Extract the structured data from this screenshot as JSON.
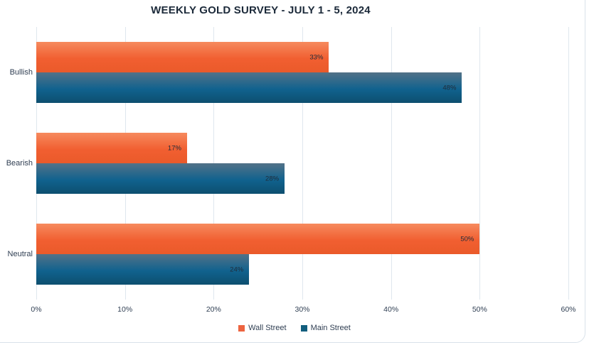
{
  "chart_data": {
    "type": "bar",
    "orientation": "horizontal",
    "title": "WEEKLY GOLD SURVEY - JULY 1 - 5, 2024",
    "categories": [
      "Bullish",
      "Bearish",
      "Neutral"
    ],
    "series": [
      {
        "name": "Wall Street",
        "values": [
          33,
          17,
          50
        ],
        "labels": [
          "33%",
          "17%",
          "50%"
        ],
        "legend_color": "#ED6440",
        "gradient": [
          "#F68A5E",
          "#F15F31",
          "#EA5A2A"
        ]
      },
      {
        "name": "Main Street",
        "values": [
          48,
          28,
          24
        ],
        "labels": [
          "48%",
          "28%",
          "24%"
        ],
        "legend_color": "#125E7E",
        "gradient": [
          "#527288",
          "#10628E",
          "#0D4F6F"
        ]
      }
    ],
    "x_ticks": [
      "0%",
      "10%",
      "20%",
      "30%",
      "40%",
      "50%",
      "60%"
    ],
    "xlim": [
      0,
      60
    ],
    "grid": "vertical-only",
    "gridline_color": "#DFE7EE",
    "legend_position": "bottom",
    "data_label_position": "inside-end",
    "title_color": "#1C2A3A",
    "axis_text_color": "#2F3E52",
    "card_border_color": "#D9E2EA",
    "background_color": "#FFFFFF"
  }
}
